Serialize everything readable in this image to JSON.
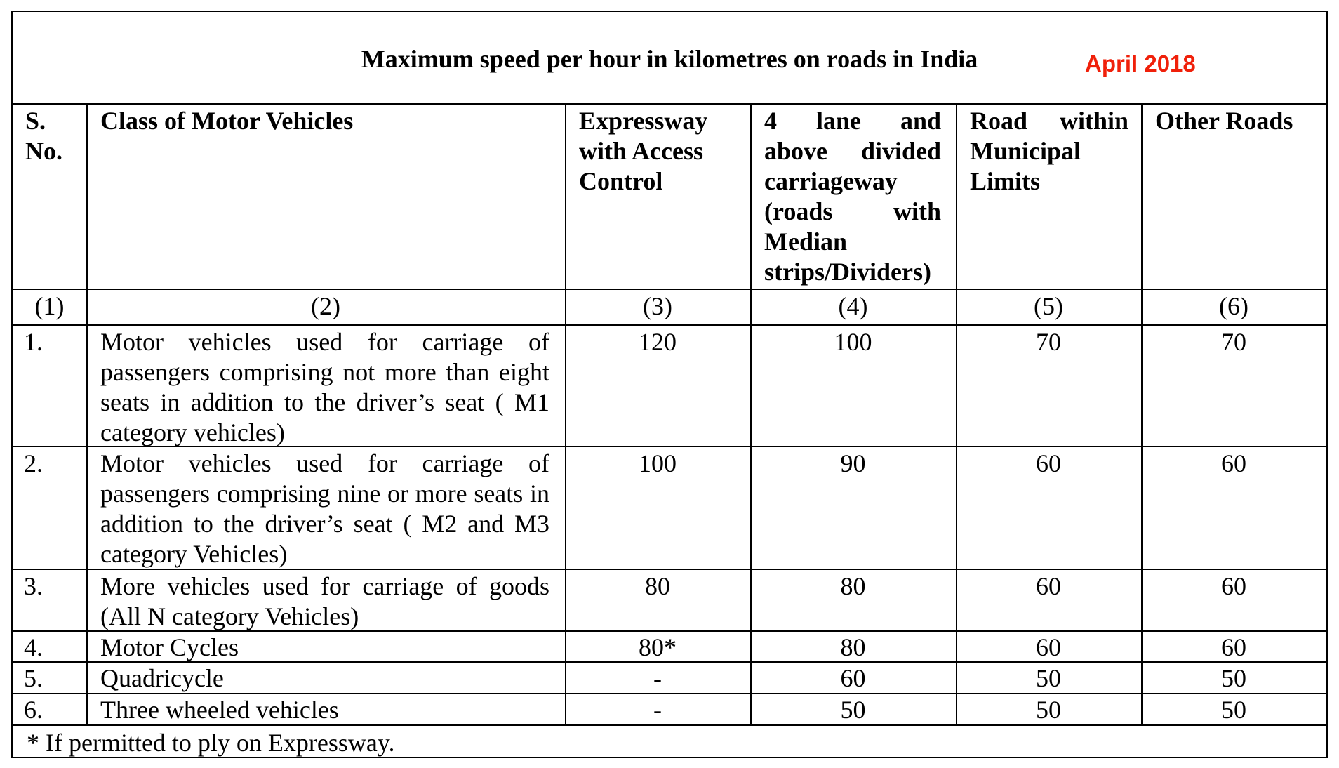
{
  "title": "Maximum speed per hour in kilometres on roads in India",
  "date_label": "April 2018",
  "table": {
    "headers": [
      "S. No.",
      "Class of Motor Vehicles",
      "Expressway with Access Control",
      "4 lane and above divided carriageway (roads with Median strips/Dividers)",
      "Road within Municipal Limits",
      "Other Roads"
    ],
    "column_numbers": [
      "(1)",
      "(2)",
      "(3)",
      "(4)",
      "(5)",
      "(6)"
    ],
    "rows": [
      {
        "sno": "1.",
        "vehicle_class": "Motor vehicles used for carriage of passengers comprising not more than eight seats in addition to the driver’s seat ( M1 category vehicles)",
        "expressway": "120",
        "four_lane": "100",
        "municipal": "70",
        "other": "70"
      },
      {
        "sno": "2.",
        "vehicle_class": "Motor vehicles used for carriage of passengers comprising nine or more seats in addition to the driver’s seat ( M2 and M3 category Vehicles)",
        "expressway": "100",
        "four_lane": "90",
        "municipal": "60",
        "other": "60"
      },
      {
        "sno": "3.",
        "vehicle_class": "More vehicles used for carriage of goods (All N category Vehicles)",
        "expressway": "80",
        "four_lane": "80",
        "municipal": "60",
        "other": "60"
      },
      {
        "sno": "4.",
        "vehicle_class": "Motor Cycles",
        "expressway": "80*",
        "four_lane": "80",
        "municipal": "60",
        "other": "60"
      },
      {
        "sno": "5.",
        "vehicle_class": "Quadricycle",
        "expressway": "-",
        "four_lane": "60",
        "municipal": "50",
        "other": "50"
      },
      {
        "sno": "6.",
        "vehicle_class": "Three wheeled vehicles",
        "expressway": "-",
        "four_lane": "50",
        "municipal": "50",
        "other": "50"
      }
    ]
  },
  "footnote": "*  If permitted to ply on Expressway."
}
